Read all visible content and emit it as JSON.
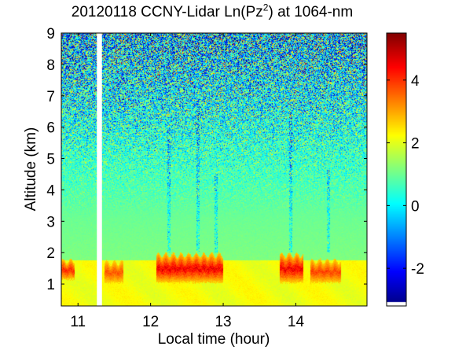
{
  "chart_data": {
    "type": "heatmap",
    "title": {
      "prefix": "20120118 CCNY-Lidar Ln(Pz",
      "superscript": "2",
      "suffix": ") at 1064-nm"
    },
    "xlabel": "Local time (hour)",
    "ylabel": "Altitude (km)",
    "xlim": [
      10.77,
      14.98
    ],
    "ylim": [
      0.3,
      9.0
    ],
    "x_ticks": [
      11,
      12,
      13,
      14
    ],
    "y_ticks": [
      1,
      2,
      3,
      4,
      5,
      6,
      7,
      8,
      9
    ],
    "colorbar": {
      "range": [
        -3.2,
        5.5
      ],
      "ticks": [
        -2,
        0,
        2,
        4
      ],
      "colormap": "jet"
    },
    "grid": false,
    "no_data_gap_hours": [
      11.26,
      11.33
    ],
    "features": {
      "boundary_layer_top_km": 1.75,
      "cloud_layers": [
        {
          "start_hour": 10.77,
          "end_hour": 10.95,
          "base_km": 1.1,
          "top_km": 1.75,
          "peak_ln": 4.5
        },
        {
          "start_hour": 11.37,
          "end_hour": 11.63,
          "base_km": 1.0,
          "top_km": 1.7,
          "peak_ln": 4.0
        },
        {
          "start_hour": 12.08,
          "end_hour": 13.0,
          "base_km": 1.0,
          "top_km": 1.95,
          "peak_ln": 5.0
        },
        {
          "start_hour": 13.78,
          "end_hour": 14.1,
          "base_km": 1.0,
          "top_km": 1.95,
          "peak_ln": 5.0
        },
        {
          "start_hour": 14.2,
          "end_hour": 14.62,
          "base_km": 1.0,
          "top_km": 1.75,
          "peak_ln": 4.2
        }
      ],
      "precipitation_streaks": [
        {
          "hour": 12.25,
          "top_km": 6.0
        },
        {
          "hour": 12.65,
          "top_km": 6.6
        },
        {
          "hour": 12.9,
          "top_km": 4.5
        },
        {
          "hour": 13.93,
          "top_km": 6.5
        },
        {
          "hour": 14.45,
          "top_km": 4.7
        }
      ]
    }
  }
}
